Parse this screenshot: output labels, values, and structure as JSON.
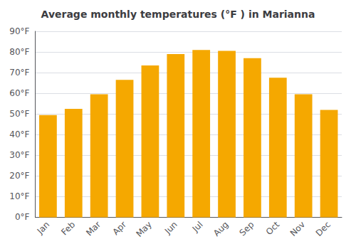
{
  "chart_data": {
    "type": "bar",
    "title": "Average monthly temperatures (°F ) in Marianna",
    "categories": [
      "Jan",
      "Feb",
      "Mar",
      "Apr",
      "May",
      "Jun",
      "Jul",
      "Aug",
      "Sep",
      "Oct",
      "Nov",
      "Dec"
    ],
    "values": [
      49.5,
      52.5,
      59.5,
      66.5,
      73.5,
      79,
      81,
      80.5,
      77,
      67.5,
      59.5,
      52
    ],
    "color": "#F5A800",
    "ylim": [
      0,
      90
    ],
    "yticks": [
      {
        "value": 0,
        "label": "0°F"
      },
      {
        "value": 10,
        "label": "10°F"
      },
      {
        "value": 20,
        "label": "20°F"
      },
      {
        "value": 30,
        "label": "30°F"
      },
      {
        "value": 40,
        "label": "40°F"
      },
      {
        "value": 50,
        "label": "50°F"
      },
      {
        "value": 60,
        "label": "60°F"
      },
      {
        "value": 70,
        "label": "70°F"
      },
      {
        "value": 80,
        "label": "80°F"
      },
      {
        "value": 90,
        "label": "90°F"
      }
    ],
    "grid": true
  }
}
